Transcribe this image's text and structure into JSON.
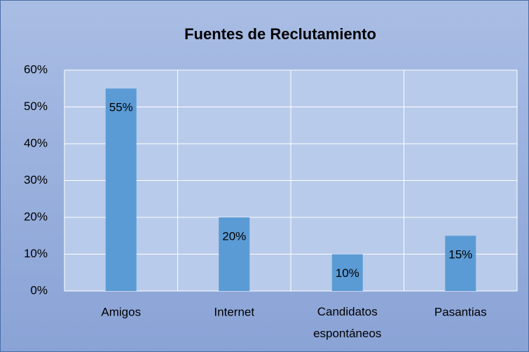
{
  "chart_data": {
    "type": "bar",
    "title": "Fuentes de Reclutamiento",
    "categories": [
      "Amigos",
      "Internet",
      "Candidatos espontáneos",
      "Pasantias"
    ],
    "values": [
      55,
      20,
      10,
      15
    ],
    "value_labels": [
      "55%",
      "20%",
      "10%",
      "15%"
    ],
    "color": "#5b9bd5",
    "ylim": [
      0,
      60
    ],
    "yticks": [
      {
        "value": 0,
        "label": "0%"
      },
      {
        "value": 10,
        "label": "10%"
      },
      {
        "value": 20,
        "label": "20%"
      },
      {
        "value": 30,
        "label": "30%"
      },
      {
        "value": 40,
        "label": "40%"
      },
      {
        "value": 50,
        "label": "50%"
      },
      {
        "value": 60,
        "label": "60%"
      }
    ],
    "grid": true
  }
}
